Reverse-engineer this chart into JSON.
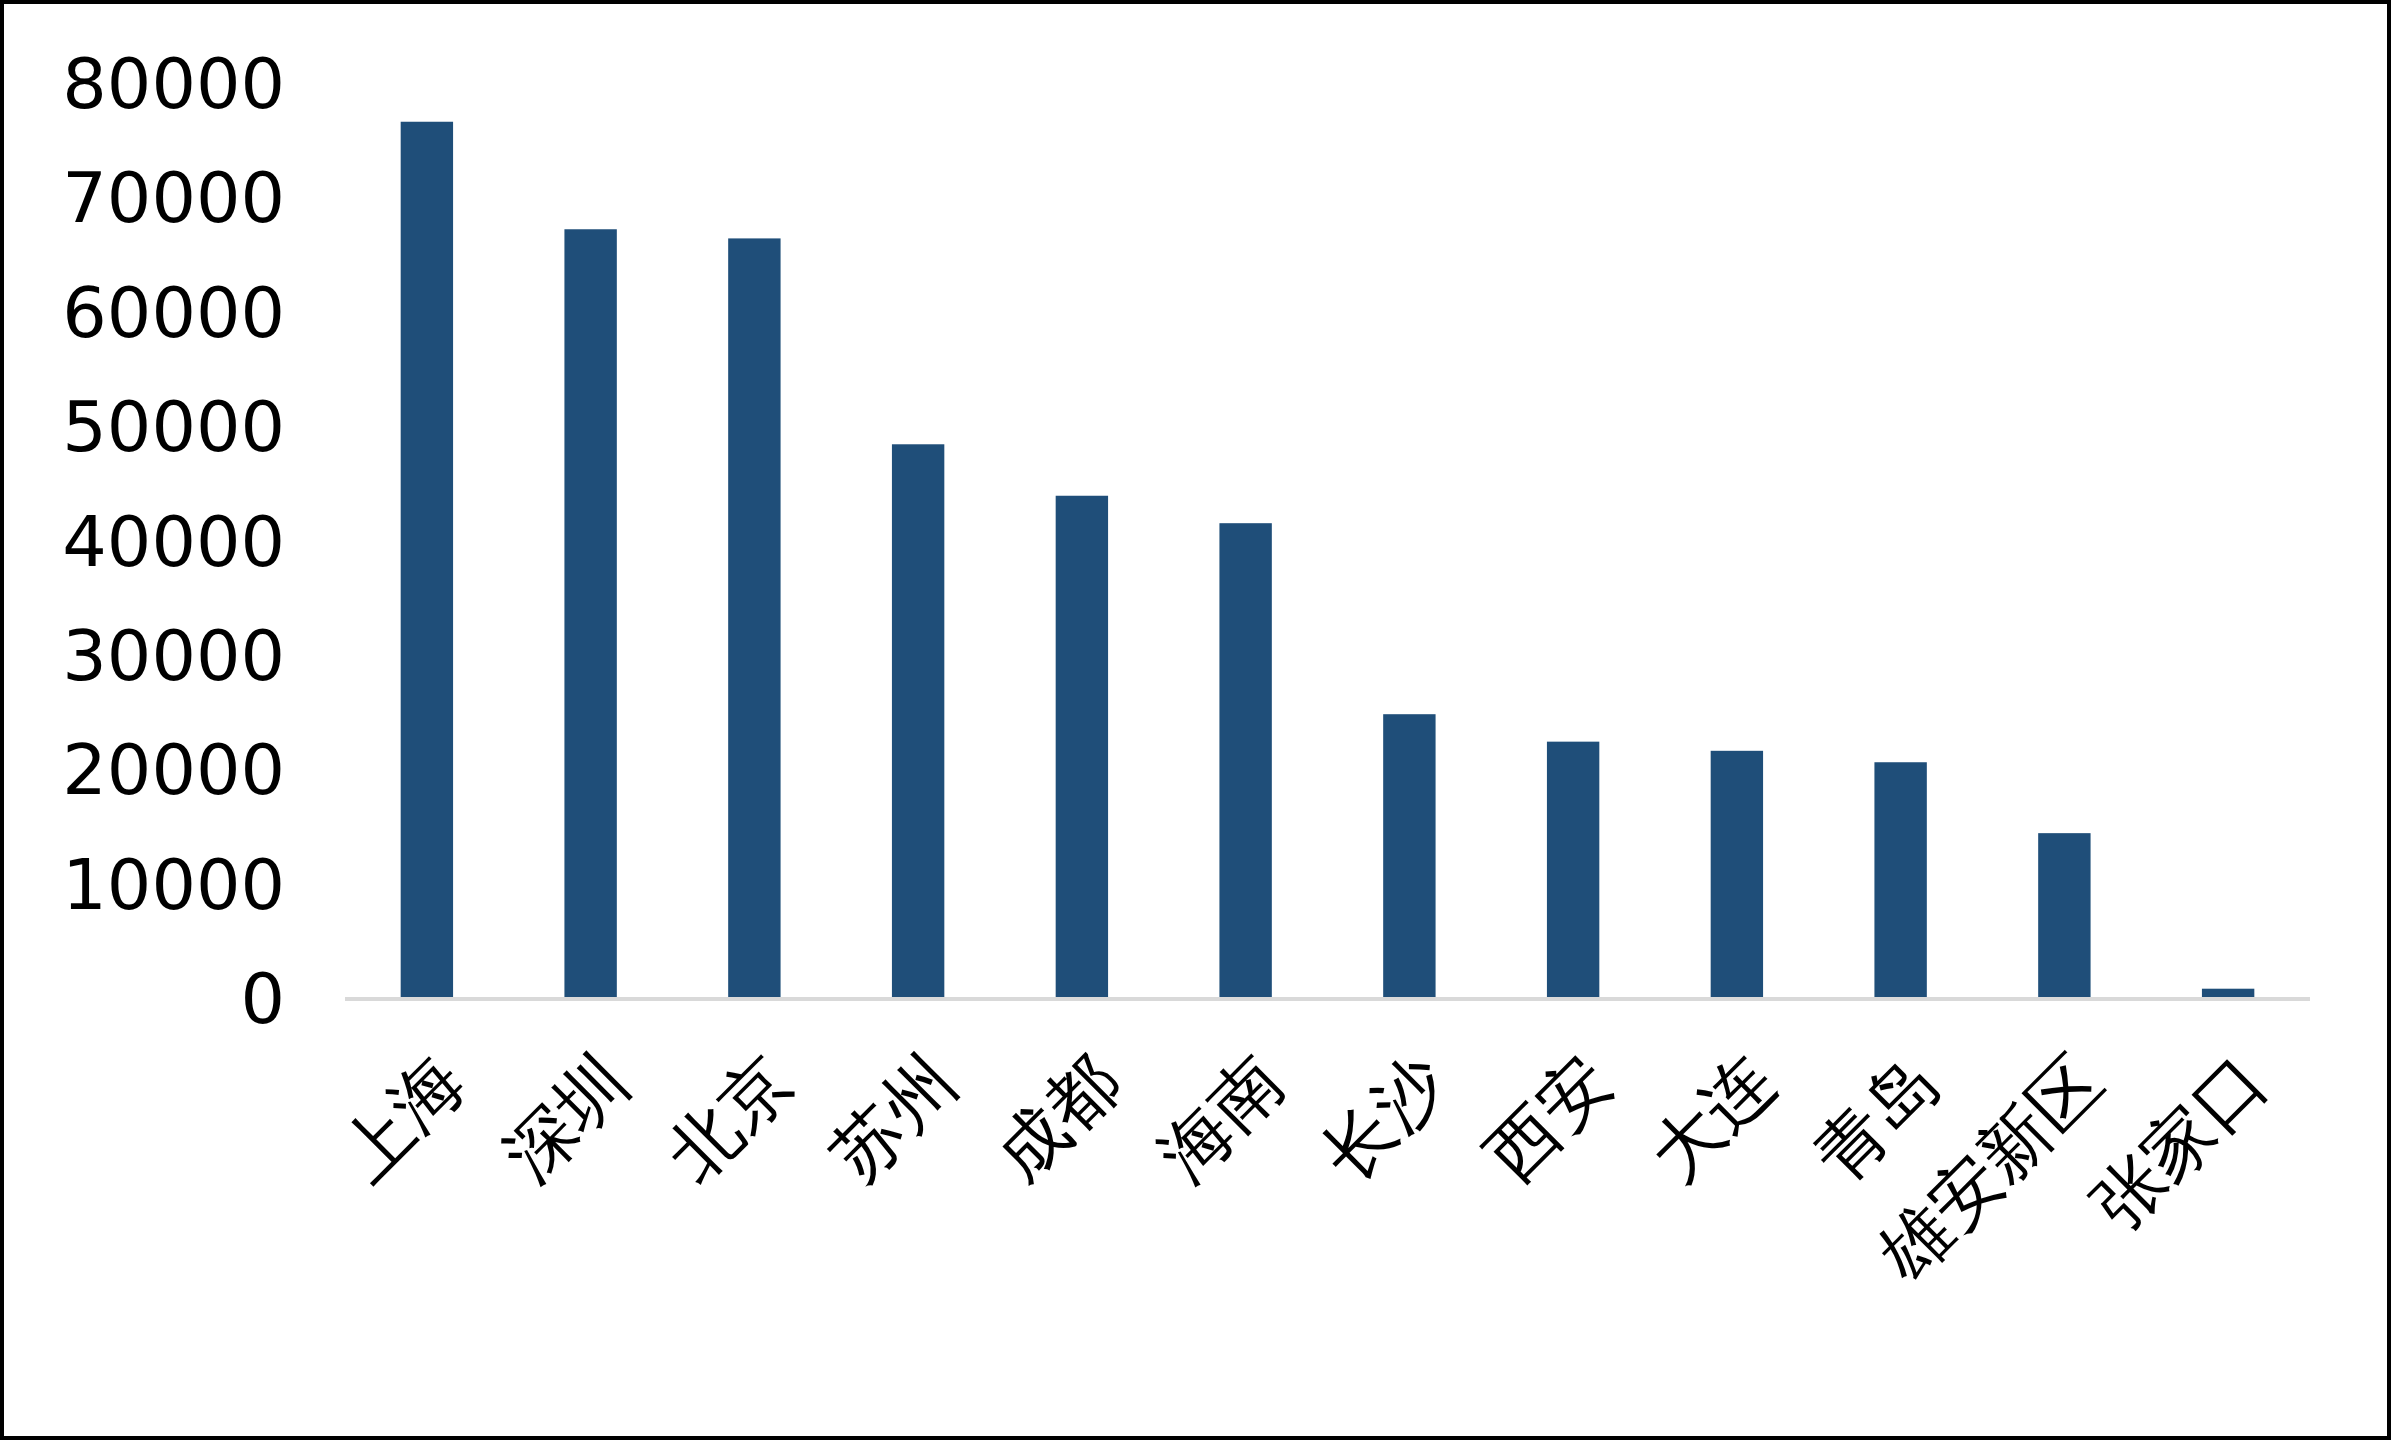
{
  "chart_data": {
    "type": "bar",
    "categories": [
      "上海",
      "深圳",
      "北京",
      "苏州",
      "成都",
      "海南",
      "长沙",
      "西安",
      "大连",
      "青岛",
      "雄安新区",
      "张家口"
    ],
    "values": [
      76700,
      67300,
      66500,
      48500,
      44000,
      41600,
      24900,
      22500,
      21700,
      20700,
      14500,
      900
    ],
    "color": "#1f4e79",
    "ylim": [
      0,
      80000
    ],
    "yticks": [
      0,
      10000,
      20000,
      30000,
      40000,
      50000,
      60000,
      70000,
      80000
    ],
    "grid": false
  }
}
